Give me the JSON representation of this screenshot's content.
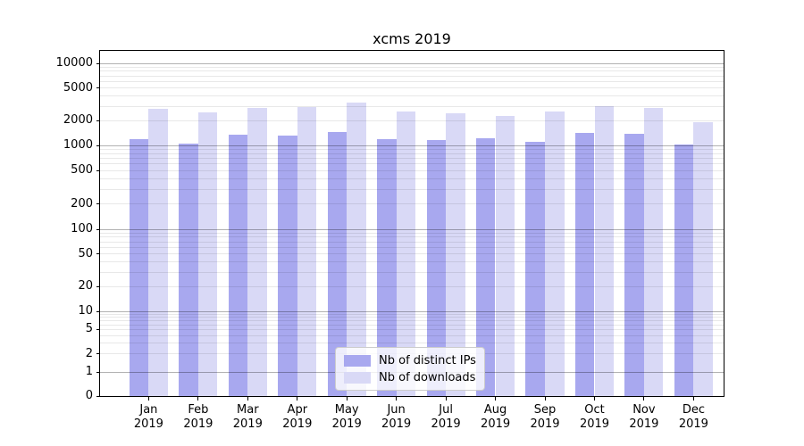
{
  "chart_data": {
    "type": "bar",
    "title": "xcms 2019",
    "categories": [
      "Jan",
      "Feb",
      "Mar",
      "Apr",
      "May",
      "Jun",
      "Jul",
      "Aug",
      "Sep",
      "Oct",
      "Nov",
      "Dec"
    ],
    "x_tick_year": "2019",
    "series": [
      {
        "name": "Nb of distinct IPs",
        "color": "#a8a8ef",
        "values": [
          1190,
          1060,
          1360,
          1330,
          1460,
          1200,
          1150,
          1230,
          1110,
          1430,
          1380,
          1030
        ]
      },
      {
        "name": "Nb of downloads",
        "color": "#d9d9f6",
        "values": [
          2780,
          2520,
          2900,
          2970,
          3340,
          2560,
          2470,
          2280,
          2600,
          3000,
          2850,
          1930
        ]
      }
    ],
    "y_ticks": [
      0,
      1,
      2,
      5,
      10,
      20,
      50,
      100,
      200,
      500,
      1000,
      2000,
      5000,
      10000
    ],
    "y_scale": "symlog",
    "ylim": [
      0,
      14000
    ],
    "xlabel": "",
    "ylabel": "",
    "grid": true,
    "legend_position": "lower center",
    "grid_major_color": "#b3b3b3",
    "grid_minor_color": "#e7e7e7"
  }
}
